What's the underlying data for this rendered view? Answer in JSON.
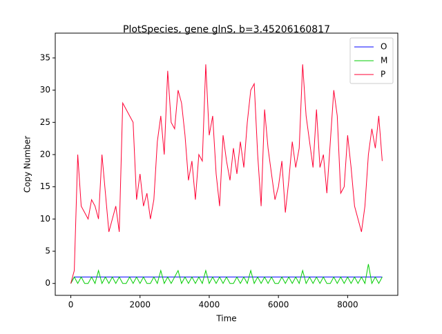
{
  "chart_data": {
    "type": "line",
    "title": "PlotSpecies, gene glnS, b=3.45206160817",
    "x_label": "Time",
    "y_label": "Copy Number",
    "x": [
      0,
      100,
      200,
      300,
      400,
      500,
      600,
      700,
      800,
      900,
      1000,
      1100,
      1200,
      1300,
      1400,
      1500,
      1600,
      1700,
      1800,
      1900,
      2000,
      2100,
      2200,
      2300,
      2400,
      2500,
      2600,
      2700,
      2800,
      2900,
      3000,
      3100,
      3200,
      3300,
      3400,
      3500,
      3600,
      3700,
      3800,
      3900,
      4000,
      4100,
      4200,
      4300,
      4400,
      4500,
      4600,
      4700,
      4800,
      4900,
      5000,
      5100,
      5200,
      5300,
      5400,
      5500,
      5600,
      5700,
      5800,
      5900,
      6000,
      6100,
      6200,
      6300,
      6400,
      6500,
      6600,
      6700,
      6800,
      6900,
      7000,
      7100,
      7200,
      7300,
      7400,
      7500,
      7600,
      7700,
      7800,
      7900,
      8000,
      8100,
      8200,
      8300,
      8400,
      8500,
      8600,
      8700,
      8800,
      8900,
      9000
    ],
    "series": [
      {
        "name": "O",
        "color": "#0000ff",
        "values": [
          0,
          1,
          1,
          1,
          1,
          1,
          1,
          1,
          1,
          1,
          1,
          1,
          1,
          1,
          1,
          1,
          1,
          1,
          1,
          1,
          1,
          1,
          1,
          1,
          1,
          1,
          1,
          1,
          1,
          1,
          1,
          1,
          1,
          1,
          1,
          1,
          1,
          1,
          1,
          1,
          1,
          1,
          1,
          1,
          1,
          1,
          1,
          1,
          1,
          1,
          1,
          1,
          1,
          1,
          1,
          1,
          1,
          1,
          1,
          1,
          1,
          1,
          1,
          1,
          1,
          1,
          1,
          1,
          1,
          1,
          1,
          1,
          1,
          1,
          1,
          1,
          1,
          1,
          1,
          1,
          1,
          1,
          1,
          1,
          1,
          1,
          1,
          1,
          1,
          1,
          1
        ]
      },
      {
        "name": "M",
        "color": "#00cc00",
        "values": [
          0,
          1,
          0,
          1,
          0,
          0,
          1,
          0,
          2,
          0,
          1,
          0,
          1,
          0,
          1,
          0,
          0,
          1,
          0,
          1,
          0,
          1,
          0,
          0,
          1,
          0,
          2,
          0,
          1,
          0,
          1,
          2,
          0,
          1,
          0,
          1,
          0,
          1,
          0,
          2,
          0,
          1,
          0,
          1,
          0,
          1,
          0,
          0,
          1,
          0,
          1,
          0,
          2,
          0,
          1,
          0,
          1,
          0,
          1,
          0,
          0,
          1,
          0,
          1,
          0,
          1,
          0,
          2,
          0,
          1,
          0,
          1,
          0,
          1,
          0,
          0,
          1,
          0,
          1,
          0,
          1,
          0,
          1,
          0,
          1,
          0,
          3,
          0,
          1,
          0,
          1
        ]
      },
      {
        "name": "P",
        "color": "#ff0033",
        "values": [
          0,
          2,
          20,
          12,
          11,
          10,
          13,
          12,
          10,
          20,
          14,
          8,
          10,
          12,
          8,
          28,
          27,
          26,
          25,
          13,
          17,
          12,
          14,
          10,
          13,
          22,
          26,
          20,
          33,
          25,
          24,
          30,
          28,
          23,
          16,
          19,
          13,
          20,
          19,
          34,
          23,
          26,
          17,
          12,
          23,
          19,
          16,
          21,
          17,
          22,
          18,
          25,
          30,
          31,
          20,
          12,
          27,
          21,
          17,
          13,
          15,
          19,
          11,
          16,
          22,
          18,
          21,
          34,
          26,
          22,
          18,
          27,
          18,
          20,
          14,
          22,
          30,
          26,
          14,
          15,
          23,
          18,
          12,
          10,
          8,
          12,
          20,
          24,
          21,
          26,
          19
        ]
      }
    ],
    "xlim": [
      -450,
      9450
    ],
    "xticks": [
      0,
      2000,
      4000,
      6000,
      8000
    ],
    "ylim": [
      -1.85,
      38.85
    ],
    "yticks": [
      0,
      5,
      10,
      15,
      20,
      25,
      30,
      35
    ],
    "legend": "upper right"
  }
}
